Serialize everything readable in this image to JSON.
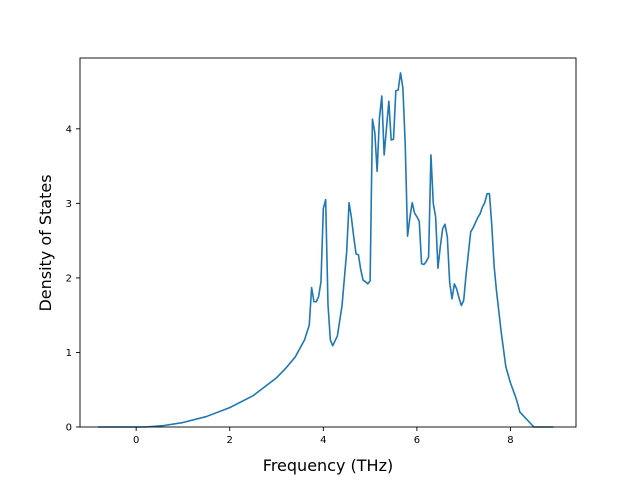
{
  "chart_data": {
    "type": "line",
    "title": "",
    "xlabel": "Frequency (THz)",
    "ylabel": "Density of States",
    "xlim": [
      -1.2,
      9.4
    ],
    "ylim": [
      0,
      4.95
    ],
    "xticks": [
      0,
      2,
      4,
      6,
      8
    ],
    "yticks": [
      0,
      1,
      2,
      3,
      4
    ],
    "xtick_labels": [
      "0",
      "2",
      "4",
      "6",
      "8"
    ],
    "ytick_labels": [
      "0",
      "1",
      "2",
      "3",
      "4"
    ],
    "grid": false,
    "legend": "none",
    "line_color": "#1f77b4",
    "series": [
      {
        "x": [
          -0.8,
          -0.4,
          0.0,
          0.2,
          0.6,
          1.0,
          1.5,
          2.0,
          2.5,
          3.0,
          3.2,
          3.4,
          3.6,
          3.7,
          3.75,
          3.8,
          3.85,
          3.9,
          3.95,
          4.0,
          4.05,
          4.1,
          4.15,
          4.2,
          4.3,
          4.4,
          4.5,
          4.55,
          4.6,
          4.65,
          4.7,
          4.75,
          4.8,
          4.85,
          4.9,
          4.95,
          5.0,
          5.05,
          5.1,
          5.15,
          5.2,
          5.25,
          5.3,
          5.35,
          5.4,
          5.45,
          5.5,
          5.55,
          5.6,
          5.65,
          5.7,
          5.75,
          5.8,
          5.85,
          5.9,
          5.95,
          6.0,
          6.05,
          6.1,
          6.15,
          6.2,
          6.25,
          6.3,
          6.35,
          6.4,
          6.45,
          6.5,
          6.55,
          6.6,
          6.65,
          6.7,
          6.75,
          6.8,
          6.85,
          6.9,
          6.95,
          7.0,
          7.05,
          7.1,
          7.15,
          7.2,
          7.25,
          7.3,
          7.35,
          7.4,
          7.45,
          7.5,
          7.55,
          7.6,
          7.65,
          7.7,
          7.8,
          7.9,
          8.0,
          8.1,
          8.15,
          8.2,
          8.5,
          8.9
        ],
        "y": [
          0.0,
          0.0,
          0.0,
          0.0,
          0.02,
          0.06,
          0.14,
          0.26,
          0.42,
          0.66,
          0.79,
          0.94,
          1.17,
          1.37,
          1.87,
          1.68,
          1.68,
          1.75,
          1.95,
          2.93,
          3.05,
          1.64,
          1.17,
          1.09,
          1.22,
          1.63,
          2.36,
          3.01,
          2.81,
          2.55,
          2.32,
          2.31,
          2.11,
          1.97,
          1.95,
          1.92,
          1.96,
          4.13,
          3.95,
          3.43,
          4.15,
          4.44,
          3.65,
          4.01,
          4.37,
          3.85,
          3.86,
          4.51,
          4.52,
          4.75,
          4.55,
          3.8,
          2.56,
          2.81,
          3.01,
          2.87,
          2.82,
          2.76,
          2.19,
          2.18,
          2.22,
          2.28,
          3.65,
          3.0,
          2.82,
          2.13,
          2.42,
          2.66,
          2.72,
          2.55,
          1.94,
          1.72,
          1.92,
          1.85,
          1.73,
          1.63,
          1.7,
          2.04,
          2.33,
          2.62,
          2.67,
          2.74,
          2.81,
          2.86,
          2.95,
          3.01,
          3.13,
          3.13,
          2.71,
          2.16,
          1.83,
          1.28,
          0.81,
          0.59,
          0.42,
          0.32,
          0.2,
          0.0,
          0.0
        ]
      }
    ]
  }
}
